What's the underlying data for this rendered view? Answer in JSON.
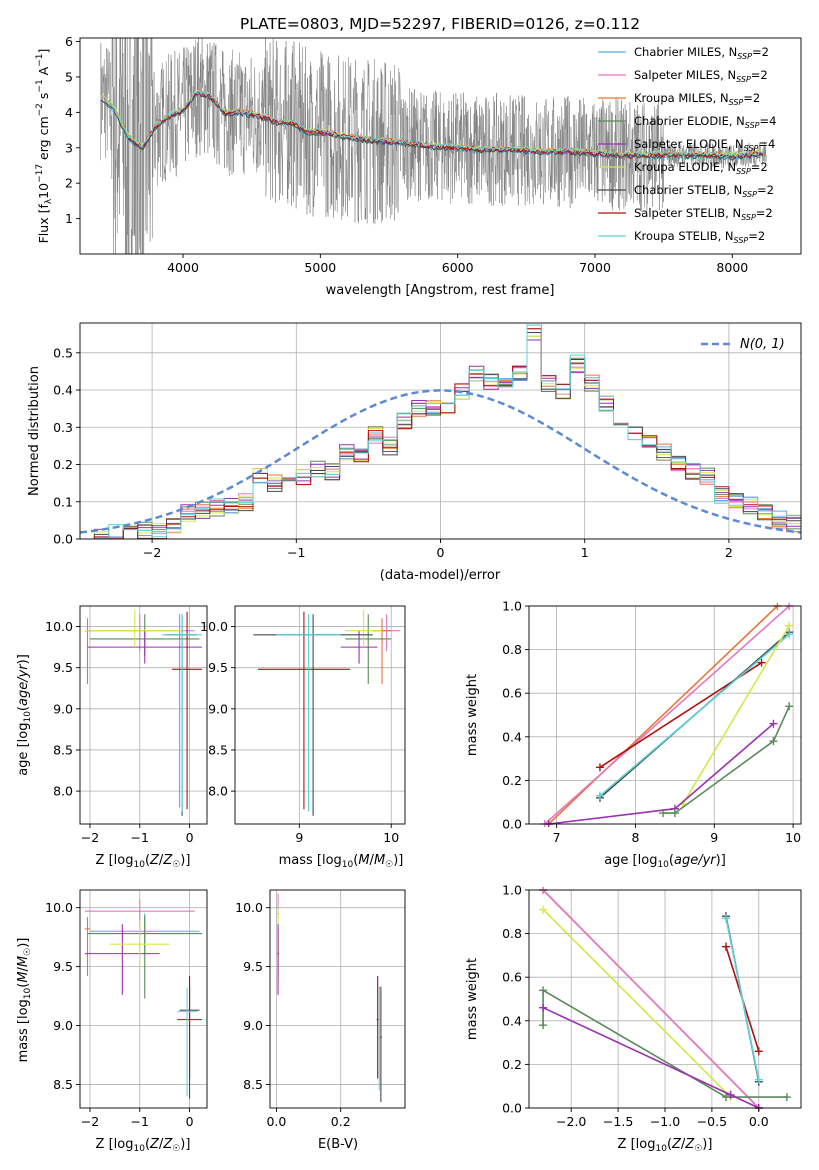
{
  "colors": {
    "Chabrier MILES": "#5aa9e6",
    "Salpeter MILES": "#e377c2",
    "Kroupa MILES": "#e8743b",
    "Chabrier ELODIE": "#5b8a5b",
    "Salpeter ELODIE": "#9b30b0",
    "Kroupa ELODIE": "#d4e84a",
    "Chabrier STELIB": "#444a52",
    "Salpeter STELIB": "#b01010",
    "Kroupa STELIB": "#5fd3d8",
    "data": "#7f7f7f",
    "normal": "#5b8ad6"
  },
  "chart_data": [
    {
      "id": "spectrum",
      "type": "line",
      "title": "PLATE=0803, MJD=52297, FIBERID=0126, z=0.112",
      "xlabel": "wavelength [Angstrom, rest frame]",
      "ylabel_parts": [
        "Flux [f",
        "λ",
        "10",
        "−17",
        " erg cm",
        "−2",
        " s",
        "−1",
        " A",
        "−1",
        "]"
      ],
      "xlim": [
        3250,
        8500
      ],
      "ylim": [
        0,
        6.1
      ],
      "xticks": [
        4000,
        5000,
        6000,
        7000,
        8000
      ],
      "yticks": [
        1,
        2,
        3,
        4,
        5,
        6
      ],
      "legend": [
        {
          "model": "Chabrier MILES",
          "label": "Chabrier MILES, N",
          "sub": "SSP",
          "suffix": "=2"
        },
        {
          "model": "Salpeter MILES",
          "label": "Salpeter MILES, N",
          "sub": "SSP",
          "suffix": "=2"
        },
        {
          "model": "Kroupa MILES",
          "label": "Kroupa MILES, N",
          "sub": "SSP",
          "suffix": "=2"
        },
        {
          "model": "Chabrier ELODIE",
          "label": "Chabrier ELODIE, N",
          "sub": "SSP",
          "suffix": "=4"
        },
        {
          "model": "Salpeter ELODIE",
          "label": "Salpeter ELODIE, N",
          "sub": "SSP",
          "suffix": "=4"
        },
        {
          "model": "Kroupa ELODIE",
          "label": "Kroupa ELODIE, N",
          "sub": "SSP",
          "suffix": "=2"
        },
        {
          "model": "Chabrier STELIB",
          "label": "Chabrier STELIB, N",
          "sub": "SSP",
          "suffix": "=2"
        },
        {
          "model": "Salpeter STELIB",
          "label": "Salpeter STELIB, N",
          "sub": "SSP",
          "suffix": "=2"
        },
        {
          "model": "Kroupa STELIB",
          "label": "Kroupa STELIB, N",
          "sub": "SSP",
          "suffix": "=2"
        }
      ],
      "continuum": {
        "x": [
          3400,
          3500,
          3600,
          3700,
          3800,
          3900,
          4000,
          4100,
          4200,
          4300,
          4400,
          4500,
          4600,
          4700,
          4800,
          4900,
          5000,
          5200,
          5400,
          5600,
          5800,
          6000,
          6200,
          6400,
          6600,
          6800,
          7000,
          7200,
          7400,
          7600,
          7800,
          8000,
          8250
        ],
        "y": [
          4.45,
          4.1,
          3.3,
          3.0,
          3.6,
          3.9,
          4.05,
          4.55,
          4.45,
          4.0,
          4.0,
          3.95,
          3.85,
          3.7,
          3.7,
          3.45,
          3.45,
          3.3,
          3.2,
          3.15,
          3.05,
          3.0,
          2.95,
          2.95,
          2.9,
          2.9,
          2.85,
          2.8,
          2.8,
          2.8,
          2.8,
          2.75,
          2.85
        ]
      }
    },
    {
      "id": "residuals",
      "type": "histogram",
      "xlabel": "(data-model)/error",
      "ylabel": "Normed distribution",
      "xlim": [
        -2.5,
        2.5
      ],
      "ylim": [
        0,
        0.58
      ],
      "xticks": [
        -2,
        -1,
        0,
        1,
        2
      ],
      "yticks": [
        0.0,
        0.1,
        0.2,
        0.3,
        0.4,
        0.5
      ],
      "legend": "N(0, 1)",
      "bin_width": 0.1,
      "bin_start": -2.5,
      "values": [
        0.005,
        0.005,
        0.015,
        0.01,
        0.02,
        0.02,
        0.03,
        0.07,
        0.08,
        0.085,
        0.085,
        0.1,
        0.17,
        0.15,
        0.16,
        0.17,
        0.19,
        0.18,
        0.23,
        0.23,
        0.28,
        0.25,
        0.32,
        0.35,
        0.35,
        0.35,
        0.4,
        0.44,
        0.42,
        0.42,
        0.45,
        0.55,
        0.42,
        0.4,
        0.47,
        0.42,
        0.36,
        0.32,
        0.28,
        0.27,
        0.23,
        0.2,
        0.18,
        0.17,
        0.12,
        0.1,
        0.09,
        0.07,
        0.05,
        0.04
      ]
    },
    {
      "id": "age-vs-Z",
      "type": "scatter",
      "xlabel": "Z [log10(Z/Z☉)]",
      "ylabel": "age [log10(age/yr)]",
      "xlim": [
        -2.2,
        0.35
      ],
      "ylim": [
        7.6,
        10.25
      ],
      "xticks": [
        -2,
        -1,
        0
      ],
      "yticks": [
        8.0,
        8.5,
        9.0,
        9.5,
        10.0
      ],
      "points": [
        {
          "model": "Chabrier MILES",
          "x": -0.2,
          "y": 9.9,
          "xerr": 0.3,
          "yerr": [
            2.1,
            0.25
          ]
        },
        {
          "model": "Salpeter MILES",
          "x": -1.0,
          "y": 9.95,
          "xerr": 1.1,
          "yerr": [
            0.25,
            0.2
          ]
        },
        {
          "model": "Kroupa MILES",
          "x": -2.05,
          "y": 9.95,
          "xerr": 0.05,
          "yerr": [
            0.65,
            0.15
          ]
        },
        {
          "model": "Chabrier ELODIE",
          "x": -0.9,
          "y": 9.85,
          "xerr": 1.1,
          "yerr": [
            0.2,
            0.3
          ]
        },
        {
          "model": "Salpeter ELODIE",
          "x": -0.9,
          "y": 9.75,
          "xerr": 1.15,
          "yerr": [
            0.2,
            0.2
          ]
        },
        {
          "model": "Kroupa ELODIE",
          "x": -1.1,
          "y": 9.95,
          "xerr": 1.0,
          "yerr": [
            0.2,
            0.25
          ]
        },
        {
          "model": "Chabrier STELIB",
          "x": -0.15,
          "y": 9.9,
          "xerr": 0.3,
          "yerr": [
            2.2,
            0.25
          ]
        },
        {
          "model": "Salpeter STELIB",
          "x": -0.05,
          "y": 9.48,
          "xerr": 0.3,
          "yerr": [
            1.7,
            0.7
          ]
        },
        {
          "model": "Kroupa STELIB",
          "x": -0.15,
          "y": 9.9,
          "xerr": 0.4,
          "yerr": [
            2.15,
            0.25
          ]
        }
      ]
    },
    {
      "id": "age-vs-mass",
      "type": "scatter",
      "xlabel": "mass [log10(M/M☉)]",
      "ylabel": "",
      "xlim": [
        8.3,
        10.15
      ],
      "ylim": [
        7.6,
        10.25
      ],
      "xticks": [
        9,
        10
      ],
      "yticks": [
        8.0,
        8.5,
        9.0,
        9.5,
        10.0
      ],
      "points": [
        {
          "model": "Chabrier MILES",
          "x": 9.1,
          "y": 9.9,
          "xerr": 0.3,
          "yerr": [
            2.1,
            0.25
          ]
        },
        {
          "model": "Salpeter MILES",
          "x": 9.95,
          "y": 9.95,
          "xerr": 0.15,
          "yerr": [
            0.25,
            0.2
          ]
        },
        {
          "model": "Kroupa MILES",
          "x": 9.9,
          "y": 9.95,
          "xerr": 0.1,
          "yerr": [
            0.65,
            0.15
          ]
        },
        {
          "model": "Chabrier ELODIE",
          "x": 9.75,
          "y": 9.85,
          "xerr": 0.25,
          "yerr": [
            0.55,
            0.3
          ]
        },
        {
          "model": "Salpeter ELODIE",
          "x": 9.65,
          "y": 9.75,
          "xerr": 0.2,
          "yerr": [
            0.2,
            0.2
          ]
        },
        {
          "model": "Kroupa ELODIE",
          "x": 9.7,
          "y": 9.95,
          "xerr": 0.2,
          "yerr": [
            0.2,
            0.25
          ]
        },
        {
          "model": "Chabrier STELIB",
          "x": 9.15,
          "y": 9.9,
          "xerr": 0.65,
          "yerr": [
            2.2,
            0.25
          ]
        },
        {
          "model": "Salpeter STELIB",
          "x": 9.05,
          "y": 9.48,
          "xerr": 0.5,
          "yerr": [
            1.7,
            0.7
          ]
        },
        {
          "model": "Kroupa STELIB",
          "x": 9.1,
          "y": 9.9,
          "xerr": 0.35,
          "yerr": [
            2.15,
            0.25
          ]
        }
      ]
    },
    {
      "id": "weight-vs-age",
      "type": "line",
      "xlabel": "age [log10(age/yr)]",
      "ylabel": "mass weight",
      "xlim": [
        6.65,
        10.1
      ],
      "ylim": [
        0,
        1.0
      ],
      "xticks": [
        7,
        8,
        9,
        10
      ],
      "yticks": [
        0.0,
        0.2,
        0.4,
        0.6,
        0.8,
        1.0
      ],
      "series": [
        {
          "model": "Kroupa MILES",
          "x": [
            6.9,
            9.8
          ],
          "y": [
            0.0,
            1.0
          ]
        },
        {
          "model": "Salpeter MILES",
          "x": [
            6.85,
            9.95
          ],
          "y": [
            0.0,
            1.0
          ]
        },
        {
          "model": "Salpeter STELIB",
          "x": [
            7.55,
            9.6
          ],
          "y": [
            0.26,
            0.74
          ]
        },
        {
          "model": "Chabrier STELIB",
          "x": [
            7.55,
            9.95
          ],
          "y": [
            0.12,
            0.88
          ]
        },
        {
          "model": "Kroupa STELIB",
          "x": [
            7.55,
            9.95
          ],
          "y": [
            0.13,
            0.87
          ]
        },
        {
          "model": "Kroupa ELODIE",
          "x": [
            8.6,
            9.95
          ],
          "y": [
            0.09,
            0.91
          ]
        },
        {
          "model": "Salpeter ELODIE",
          "x": [
            6.9,
            8.5,
            9.75
          ],
          "y": [
            0.0,
            0.07,
            0.46
          ]
        },
        {
          "model": "Chabrier ELODIE",
          "x": [
            8.35,
            8.5,
            9.75,
            9.95
          ],
          "y": [
            0.05,
            0.05,
            0.38,
            0.54
          ]
        }
      ]
    },
    {
      "id": "mass-vs-Z",
      "type": "scatter",
      "xlabel": "Z [log10(Z/Z☉)]",
      "ylabel": "mass [log10(M/M☉)]",
      "xlim": [
        -2.2,
        0.35
      ],
      "ylim": [
        8.3,
        10.15
      ],
      "xticks": [
        -2,
        -1,
        0
      ],
      "yticks": [
        8.5,
        9.0,
        9.5,
        10.0
      ],
      "points": [
        {
          "model": "Chabrier MILES",
          "x": -0.9,
          "y": 9.8,
          "xerr": 1.1,
          "yerr": [
            0.2,
            0.15
          ]
        },
        {
          "model": "Salpeter MILES",
          "x": -1.0,
          "y": 9.97,
          "xerr": 1.1,
          "yerr": [
            0.2,
            0.1
          ]
        },
        {
          "model": "Kroupa MILES",
          "x": -2.05,
          "y": 9.82,
          "xerr": 0.05,
          "yerr": [
            0.4,
            0.1
          ]
        },
        {
          "model": "Chabrier ELODIE",
          "x": -0.9,
          "y": 9.78,
          "xerr": 1.15,
          "yerr": [
            0.55,
            0.15
          ]
        },
        {
          "model": "Salpeter ELODIE",
          "x": -1.35,
          "y": 9.61,
          "xerr": 0.75,
          "yerr": [
            0.35,
            0.25
          ]
        },
        {
          "model": "Kroupa ELODIE",
          "x": -1.0,
          "y": 9.69,
          "xerr": 0.6,
          "yerr": [
            0.2,
            0.2
          ]
        },
        {
          "model": "Chabrier STELIB",
          "x": 0.0,
          "y": 9.13,
          "xerr": 0.2,
          "yerr": [
            0.75,
            0.2
          ]
        },
        {
          "model": "Salpeter STELIB",
          "x": 0.0,
          "y": 9.05,
          "xerr": 0.25,
          "yerr": [
            0.5,
            0.37
          ]
        },
        {
          "model": "Kroupa STELIB",
          "x": -0.05,
          "y": 9.12,
          "xerr": 0.2,
          "yerr": [
            0.72,
            0.2
          ]
        }
      ]
    },
    {
      "id": "mass-vs-ebv",
      "type": "scatter",
      "xlabel": "E(B-V)",
      "ylabel": "",
      "xlim": [
        -0.02,
        0.4
      ],
      "ylim": [
        8.3,
        10.15
      ],
      "xticks": [
        0.0,
        0.2
      ],
      "yticks": [
        8.5,
        9.0,
        9.5,
        10.0
      ],
      "points": [
        {
          "model": "Salpeter MILES",
          "x": 0.005,
          "y": 9.95,
          "xerr": 0.003,
          "yerr": [
            0.55,
            0.17
          ]
        },
        {
          "model": "Kroupa ELODIE",
          "x": 0.005,
          "y": 9.69,
          "xerr": 0.003,
          "yerr": [
            0.4,
            0.3
          ]
        },
        {
          "model": "Salpeter ELODIE",
          "x": 0.005,
          "y": 9.61,
          "xerr": 0.003,
          "yerr": [
            0.35,
            0.25
          ]
        },
        {
          "model": "Salpeter STELIB",
          "x": 0.315,
          "y": 9.05,
          "xerr": 0.003,
          "yerr": [
            0.5,
            0.37
          ]
        },
        {
          "model": "Chabrier STELIB",
          "x": 0.325,
          "y": 8.9,
          "xerr": 0.003,
          "yerr": [
            0.55,
            0.43
          ]
        },
        {
          "model": "Kroupa STELIB",
          "x": 0.32,
          "y": 8.9,
          "xerr": 0.003,
          "yerr": [
            0.45,
            0.43
          ]
        }
      ]
    },
    {
      "id": "weight-vs-Z",
      "type": "line",
      "xlabel": "Z [log10(Z/Z☉)]",
      "ylabel": "mass weight",
      "xlim": [
        -2.45,
        0.45
      ],
      "ylim": [
        0,
        1.0
      ],
      "xticks": [
        -2.0,
        -1.5,
        -1.0,
        -0.5,
        0.0
      ],
      "yticks": [
        0.0,
        0.2,
        0.4,
        0.6,
        0.8,
        1.0
      ],
      "series": [
        {
          "model": "Kroupa MILES",
          "x": [
            -2.3,
            0.0
          ],
          "y": [
            1.0,
            0.0
          ]
        },
        {
          "model": "Salpeter MILES",
          "x": [
            -2.3,
            0.0
          ],
          "y": [
            1.0,
            0.0
          ]
        },
        {
          "model": "Kroupa ELODIE",
          "x": [
            -2.3,
            -0.3
          ],
          "y": [
            0.91,
            0.05
          ]
        },
        {
          "model": "Chabrier ELODIE",
          "x": [
            -2.3,
            -2.3,
            -0.35,
            0.3
          ],
          "y": [
            0.38,
            0.54,
            0.05,
            0.05
          ]
        },
        {
          "model": "Salpeter ELODIE",
          "x": [
            -2.3,
            -0.3,
            0.0
          ],
          "y": [
            0.46,
            0.06,
            0.0
          ]
        },
        {
          "model": "Salpeter STELIB",
          "x": [
            -0.35,
            0.0
          ],
          "y": [
            0.74,
            0.26
          ]
        },
        {
          "model": "Chabrier STELIB",
          "x": [
            -0.35,
            0.0
          ],
          "y": [
            0.88,
            0.12
          ]
        },
        {
          "model": "Kroupa STELIB",
          "x": [
            -0.35,
            0.0
          ],
          "y": [
            0.87,
            0.13
          ]
        }
      ]
    }
  ]
}
